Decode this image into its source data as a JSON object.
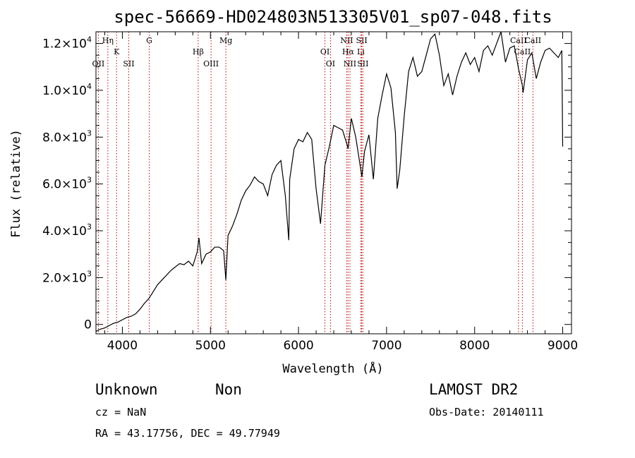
{
  "chart_data": {
    "type": "line",
    "title": "spec-56669-HD024803N513305V01_sp07-048.fits",
    "xlabel": "Wavelength (Å)",
    "ylabel": "Flux (relative)",
    "xlim": [
      3700,
      9100
    ],
    "ylim": [
      -400,
      12500
    ],
    "xticks": [
      {
        "value": 4000,
        "label": "4000"
      },
      {
        "value": 5000,
        "label": "5000"
      },
      {
        "value": 6000,
        "label": "6000"
      },
      {
        "value": 7000,
        "label": "7000"
      },
      {
        "value": 8000,
        "label": "8000"
      },
      {
        "value": 9000,
        "label": "9000"
      }
    ],
    "yticks": [
      {
        "value": 0,
        "mant": "0",
        "exp": ""
      },
      {
        "value": 2000,
        "mant": "2.0×10",
        "exp": "3"
      },
      {
        "value": 4000,
        "mant": "4.0×10",
        "exp": "3"
      },
      {
        "value": 6000,
        "mant": "6.0×10",
        "exp": "3"
      },
      {
        "value": 8000,
        "mant": "8.0×10",
        "exp": "3"
      },
      {
        "value": 10000,
        "mant": "1.0×10",
        "exp": "4"
      },
      {
        "value": 12000,
        "mant": "1.2×10",
        "exp": "4"
      }
    ],
    "series": [
      {
        "color": "#000000",
        "x": [
          3700,
          3750,
          3800,
          3850,
          3900,
          3950,
          4000,
          4050,
          4100,
          4150,
          4200,
          4250,
          4300,
          4350,
          4400,
          4450,
          4500,
          4550,
          4600,
          4650,
          4700,
          4750,
          4800,
          4850,
          4870,
          4900,
          4950,
          5000,
          5050,
          5100,
          5150,
          5175,
          5200,
          5250,
          5300,
          5350,
          5400,
          5450,
          5500,
          5550,
          5600,
          5650,
          5700,
          5750,
          5800,
          5850,
          5890,
          5900,
          5950,
          6000,
          6050,
          6100,
          6150,
          6200,
          6250,
          6300,
          6350,
          6400,
          6450,
          6500,
          6550,
          6563,
          6600,
          6650,
          6700,
          6720,
          6750,
          6800,
          6850,
          6900,
          6950,
          7000,
          7050,
          7100,
          7120,
          7150,
          7200,
          7250,
          7300,
          7350,
          7400,
          7450,
          7500,
          7550,
          7600,
          7650,
          7700,
          7750,
          7800,
          7850,
          7900,
          7950,
          8000,
          8050,
          8100,
          8150,
          8200,
          8250,
          8300,
          8350,
          8400,
          8450,
          8500,
          8542,
          8550,
          8600,
          8650,
          8700,
          8750,
          8800,
          8850,
          8900,
          8950,
          8990,
          9000
        ],
        "y": [
          -300,
          -200,
          -150,
          -50,
          50,
          100,
          200,
          300,
          350,
          450,
          650,
          900,
          1100,
          1400,
          1700,
          1900,
          2100,
          2300,
          2450,
          2600,
          2550,
          2700,
          2500,
          3100,
          3700,
          2600,
          3000,
          3100,
          3300,
          3300,
          3150,
          1900,
          3800,
          4200,
          4700,
          5300,
          5700,
          5950,
          6300,
          6100,
          6000,
          5500,
          6400,
          6800,
          7000,
          5500,
          3600,
          6200,
          7500,
          7900,
          7800,
          8200,
          7900,
          5800,
          4300,
          6800,
          7600,
          8500,
          8400,
          8300,
          7700,
          7500,
          8800,
          8000,
          6800,
          6300,
          7400,
          8100,
          6200,
          8800,
          9800,
          10700,
          10100,
          8200,
          5800,
          6600,
          8900,
          10800,
          11400,
          10600,
          10800,
          11500,
          12200,
          12400,
          11500,
          10200,
          10700,
          9800,
          10600,
          11200,
          11600,
          11100,
          11400,
          10800,
          11700,
          11900,
          11500,
          12000,
          12500,
          11200,
          11800,
          11900,
          10900,
          10200,
          9900,
          11300,
          11600,
          10500,
          11200,
          11700,
          11800,
          11600,
          11400,
          11700,
          7600
        ]
      }
    ],
    "emission_lines": [
      {
        "label": "OII",
        "x": 3727
      },
      {
        "label": "SII",
        "x": 4072
      },
      {
        "label": "OIII",
        "x": 5007
      },
      {
        "label": "OI",
        "x": 6363
      },
      {
        "label": "NII",
        "x": 6584
      },
      {
        "label": "SII",
        "x": 6731
      }
    ],
    "absorption_lines": [
      {
        "label": "Hη",
        "x": 3835
      },
      {
        "label": "K",
        "x": 3934
      },
      {
        "label": "G",
        "x": 4305
      },
      {
        "label": "Hβ",
        "x": 4861
      },
      {
        "label": "Mg",
        "x": 5175
      },
      {
        "label": "OI",
        "x": 6300
      },
      {
        "label": "NII",
        "x": 6548
      },
      {
        "label": "Hα",
        "x": 6563
      },
      {
        "label": "SII",
        "x": 6717
      },
      {
        "label": "Li",
        "x": 6708
      },
      {
        "label": "CaII",
        "x": 8498
      },
      {
        "label": "CaII",
        "x": 8542
      },
      {
        "label": "CaII",
        "x": 8662
      }
    ],
    "line_color": "#c00000"
  },
  "footer": {
    "class_label": "Unknown",
    "subclass_label": "Non",
    "survey": "LAMOST DR2",
    "cz": "cz = NaN",
    "obs_date": "Obs-Date: 20140111",
    "coords": "RA =  43.17756, DEC =  49.77949"
  }
}
